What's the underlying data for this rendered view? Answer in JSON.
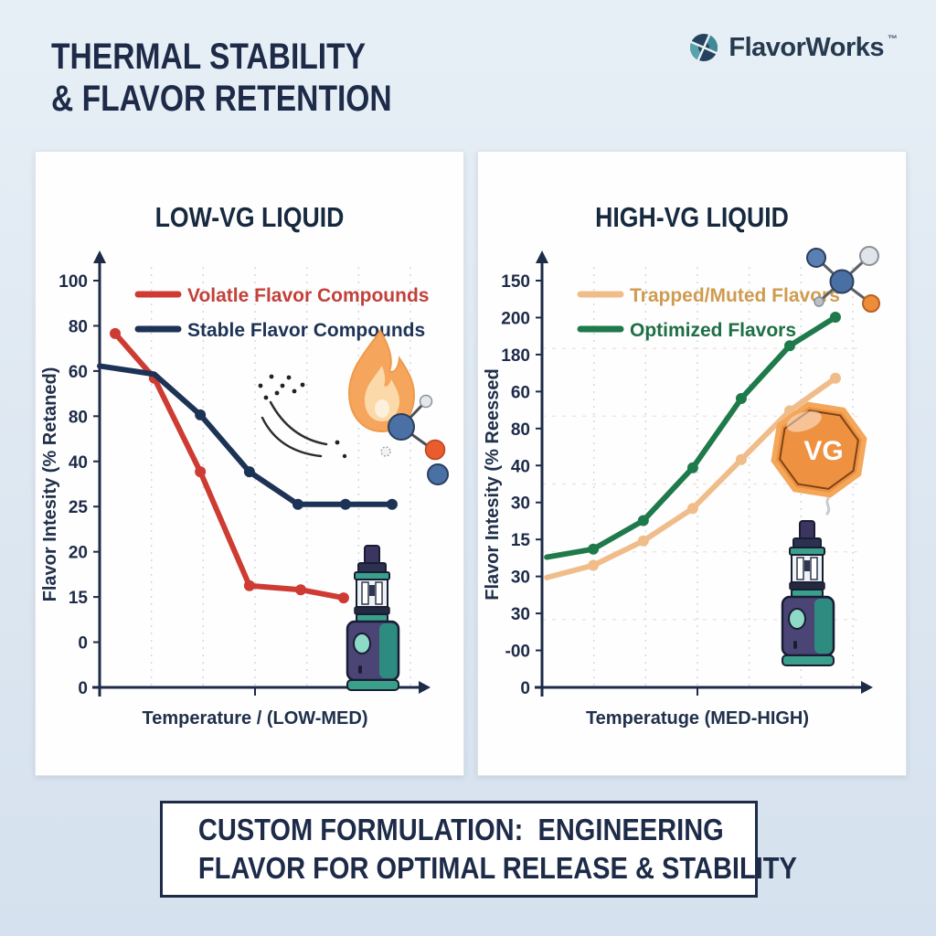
{
  "header": {
    "title_line1": "THERMAL STABILITY",
    "title_line2": "& FLAVOR RETENTION",
    "brand": {
      "name": "FlavorWorks",
      "trademark": "™"
    }
  },
  "footer": {
    "line1": "CUSTOM FORMULATION:  ENGINEERING",
    "line2": "FLAVOR FOR OPTIMAL RELEASE & STABILITY"
  },
  "icons": {
    "vg_badge_label": "VG"
  },
  "colors": {
    "navy_text": "#1d2b48",
    "panel_white": "#fefefe",
    "background": "#dde7f1",
    "red_line": "#cd3b33",
    "navy_line": "#1d3356",
    "tan_line": "#f0bd8a",
    "green_line": "#1e7a4a",
    "vg_badge_orange": "#ee9140",
    "vape_purple": "#4b4576",
    "vape_teal": "#3aa08c"
  },
  "chart_data": [
    {
      "type": "line",
      "title": "LOW-VG LIQUID",
      "xlabel": "Temperature / (LOW-MED)",
      "ylabel": "Flavor Intesity (% Retaned)",
      "ylim": [
        0,
        100
      ],
      "y_tick_labels": [
        "100",
        "80",
        "60",
        "80",
        "40",
        "25",
        "20",
        "15",
        "0",
        "0"
      ],
      "grid": "vertical-dashed",
      "legend_position": "top-left",
      "series": [
        {
          "name": "Volatle Flavor Compounds",
          "color": "#cd3b33",
          "label_color": "#c2413a",
          "x_frac": [
            0.05,
            0.176,
            0.324,
            0.482,
            0.647,
            0.785
          ],
          "values": [
            87,
            76,
            53,
            25,
            24,
            22
          ],
          "markers_from": 0
        },
        {
          "name": "Stable Flavor Compounds",
          "color": "#1d3356",
          "label_color": "#1d3356",
          "x_frac": [
            0.0,
            0.176,
            0.324,
            0.482,
            0.638,
            0.791,
            0.941
          ],
          "values": [
            79,
            77,
            67,
            53,
            45,
            45,
            45
          ],
          "markers_from": 2
        }
      ]
    },
    {
      "type": "line",
      "title": "HIGH-VG LIQUID",
      "xlabel": "Temperatuge (MED-HIGH)",
      "ylabel": "Flavor Intesity (% Reessed",
      "ylim": [
        0,
        100
      ],
      "y_tick_labels": [
        "150",
        "200",
        "180",
        "60",
        "80",
        "40",
        "30",
        "15",
        "30",
        "30",
        "-00",
        "0"
      ],
      "grid": "both",
      "legend_position": "top-left",
      "series": [
        {
          "name": "Trapped/Muted Flavors",
          "color": "#f0bd8a",
          "label_color": "#cf9b4f",
          "x_frac": [
            0.015,
            0.165,
            0.326,
            0.485,
            0.641,
            0.797,
            0.944
          ],
          "values": [
            27,
            30,
            36,
            44,
            56,
            68,
            76
          ],
          "markers_from": 1
        },
        {
          "name": "Optimized Flavors",
          "color": "#1e7a4a",
          "label_color": "#1e6f45",
          "x_frac": [
            0.015,
            0.165,
            0.326,
            0.485,
            0.641,
            0.797,
            0.944
          ],
          "values": [
            32,
            34,
            41,
            54,
            71,
            84,
            91
          ],
          "markers_from": 1
        }
      ]
    }
  ]
}
